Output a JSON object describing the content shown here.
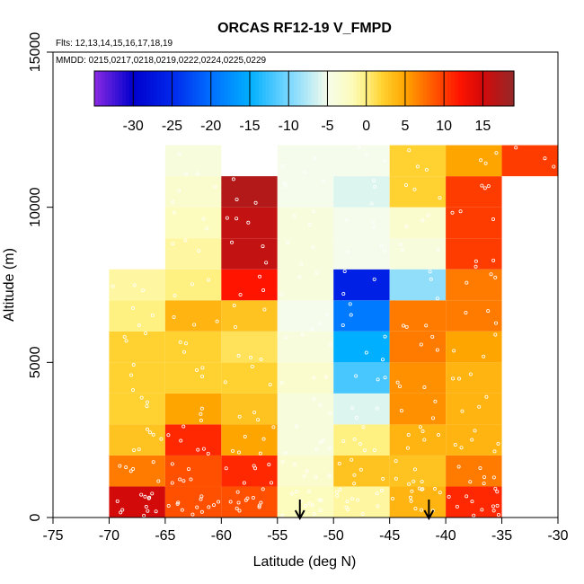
{
  "chart_data": {
    "type": "heatmap",
    "title": "ORCAS RF12-19 V_FMPD",
    "flights_label": "Flts: 12,13,14,15,16,17,18,19",
    "mmdd_label": "MMDD: 0215,0217,0218,0219,0222,0224,0225,0229",
    "xlabel": "Latitude (deg N)",
    "ylabel": "Altitude (m)",
    "xlim": [
      -75,
      -30
    ],
    "ylim": [
      0,
      15000
    ],
    "x_ticks": [
      -75,
      -70,
      -65,
      -60,
      -55,
      -50,
      -45,
      -40,
      -35,
      -30
    ],
    "x_tick_labels": [
      "-75",
      "-70",
      "-65",
      "-60",
      "-55",
      "-50",
      "-45",
      "-40",
      "-35",
      "-30"
    ],
    "y_ticks": [
      0,
      5000,
      10000,
      15000
    ],
    "y_tick_labels": [
      "0",
      "5000",
      "10000",
      "15000"
    ],
    "colorbar": {
      "range": [
        -35,
        19
      ],
      "ticks": [
        -30,
        -25,
        -20,
        -15,
        -10,
        -5,
        0,
        5,
        10,
        15
      ],
      "tick_labels": [
        "-30",
        "-25",
        "-20",
        "-15",
        "-10",
        "-5",
        "0",
        "5",
        "10",
        "15"
      ]
    },
    "bin_width_deg": 5,
    "bin_height_m": 1000,
    "cells": [
      {
        "lat": -70,
        "alt": 0,
        "v": 15
      },
      {
        "lat": -70,
        "alt": 1000,
        "v": 7
      },
      {
        "lat": -70,
        "alt": 2000,
        "v": 3
      },
      {
        "lat": -70,
        "alt": 3000,
        "v": 2
      },
      {
        "lat": -70,
        "alt": 4000,
        "v": 2
      },
      {
        "lat": -70,
        "alt": 5000,
        "v": 2
      },
      {
        "lat": -70,
        "alt": 6000,
        "v": 0
      },
      {
        "lat": -70,
        "alt": 7000,
        "v": -1
      },
      {
        "lat": -65,
        "alt": 0,
        "v": 9
      },
      {
        "lat": -65,
        "alt": 1000,
        "v": 9
      },
      {
        "lat": -65,
        "alt": 2000,
        "v": 11
      },
      {
        "lat": -65,
        "alt": 3000,
        "v": 5
      },
      {
        "lat": -65,
        "alt": 4000,
        "v": 2
      },
      {
        "lat": -65,
        "alt": 5000,
        "v": 2
      },
      {
        "lat": -65,
        "alt": 6000,
        "v": 4
      },
      {
        "lat": -65,
        "alt": 7000,
        "v": 0
      },
      {
        "lat": -65,
        "alt": 8000,
        "v": -1
      },
      {
        "lat": -65,
        "alt": 9000,
        "v": -2
      },
      {
        "lat": -65,
        "alt": 10000,
        "v": -3
      },
      {
        "lat": -65,
        "alt": 11000,
        "v": -4
      },
      {
        "lat": -60,
        "alt": 0,
        "v": 9
      },
      {
        "lat": -60,
        "alt": 1000,
        "v": 11
      },
      {
        "lat": -60,
        "alt": 2000,
        "v": 5
      },
      {
        "lat": -60,
        "alt": 3000,
        "v": 3
      },
      {
        "lat": -60,
        "alt": 4000,
        "v": 2
      },
      {
        "lat": -60,
        "alt": 5000,
        "v": 1
      },
      {
        "lat": -60,
        "alt": 6000,
        "v": 3
      },
      {
        "lat": -60,
        "alt": 7000,
        "v": 12
      },
      {
        "lat": -60,
        "alt": 8000,
        "v": 16
      },
      {
        "lat": -60,
        "alt": 9000,
        "v": 16
      },
      {
        "lat": -60,
        "alt": 10000,
        "v": 17
      },
      {
        "lat": -55,
        "alt": 0,
        "v": -2
      },
      {
        "lat": -55,
        "alt": 1000,
        "v": -3
      },
      {
        "lat": -55,
        "alt": 2000,
        "v": -4
      },
      {
        "lat": -55,
        "alt": 3000,
        "v": -4
      },
      {
        "lat": -55,
        "alt": 4000,
        "v": -3
      },
      {
        "lat": -55,
        "alt": 5000,
        "v": -4
      },
      {
        "lat": -55,
        "alt": 6000,
        "v": -5
      },
      {
        "lat": -55,
        "alt": 7000,
        "v": -4
      },
      {
        "lat": -55,
        "alt": 8000,
        "v": -4
      },
      {
        "lat": -55,
        "alt": 9000,
        "v": -4
      },
      {
        "lat": -55,
        "alt": 10000,
        "v": -5
      },
      {
        "lat": -55,
        "alt": 11000,
        "v": -5
      },
      {
        "lat": -50,
        "alt": 0,
        "v": -1
      },
      {
        "lat": -50,
        "alt": 1000,
        "v": 3
      },
      {
        "lat": -50,
        "alt": 2000,
        "v": 0
      },
      {
        "lat": -50,
        "alt": 3000,
        "v": -6
      },
      {
        "lat": -50,
        "alt": 4000,
        "v": -12
      },
      {
        "lat": -50,
        "alt": 5000,
        "v": -15
      },
      {
        "lat": -50,
        "alt": 6000,
        "v": -19
      },
      {
        "lat": -50,
        "alt": 7000,
        "v": -26
      },
      {
        "lat": -50,
        "alt": 8000,
        "v": -5
      },
      {
        "lat": -50,
        "alt": 9000,
        "v": -5
      },
      {
        "lat": -50,
        "alt": 10000,
        "v": -6
      },
      {
        "lat": -50,
        "alt": 11000,
        "v": -5
      },
      {
        "lat": -45,
        "alt": 0,
        "v": 4
      },
      {
        "lat": -45,
        "alt": 1000,
        "v": 3
      },
      {
        "lat": -45,
        "alt": 2000,
        "v": 4
      },
      {
        "lat": -45,
        "alt": 3000,
        "v": 6
      },
      {
        "lat": -45,
        "alt": 4000,
        "v": 6
      },
      {
        "lat": -45,
        "alt": 5000,
        "v": 7
      },
      {
        "lat": -45,
        "alt": 6000,
        "v": 7
      },
      {
        "lat": -45,
        "alt": 7000,
        "v": -9
      },
      {
        "lat": -45,
        "alt": 8000,
        "v": -4
      },
      {
        "lat": -45,
        "alt": 9000,
        "v": -3
      },
      {
        "lat": -45,
        "alt": 10000,
        "v": 2
      },
      {
        "lat": -45,
        "alt": 11000,
        "v": 2
      },
      {
        "lat": -40,
        "alt": 0,
        "v": 11
      },
      {
        "lat": -40,
        "alt": 1000,
        "v": 7
      },
      {
        "lat": -40,
        "alt": 2000,
        "v": 4
      },
      {
        "lat": -40,
        "alt": 3000,
        "v": 4
      },
      {
        "lat": -40,
        "alt": 4000,
        "v": 4
      },
      {
        "lat": -40,
        "alt": 5000,
        "v": 5
      },
      {
        "lat": -40,
        "alt": 6000,
        "v": 7
      },
      {
        "lat": -40,
        "alt": 7000,
        "v": 7
      },
      {
        "lat": -40,
        "alt": 8000,
        "v": 10
      },
      {
        "lat": -40,
        "alt": 9000,
        "v": 10
      },
      {
        "lat": -40,
        "alt": 10000,
        "v": 10
      },
      {
        "lat": -40,
        "alt": 11000,
        "v": 5
      },
      {
        "lat": -35,
        "alt": 11000,
        "v": 10
      }
    ],
    "markers": [
      {
        "name": "arrow-1",
        "lat": -53.0
      },
      {
        "name": "arrow-2",
        "lat": -41.5
      }
    ]
  }
}
